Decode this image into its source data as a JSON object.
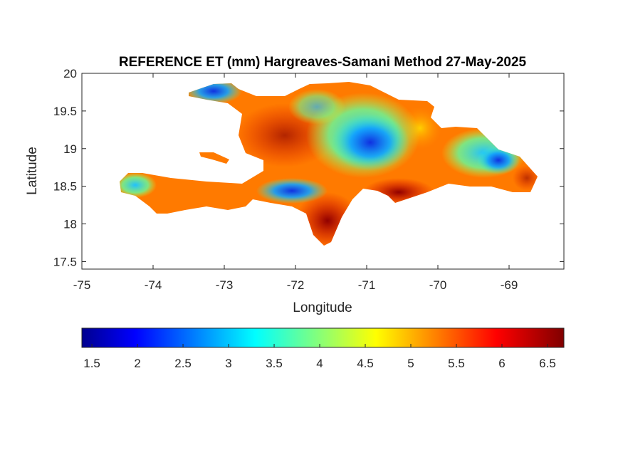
{
  "chart_data": {
    "type": "heatmap",
    "title": "REFERENCE ET (mm) Hargreaves-Samani Method  27-May-2025",
    "xlabel": "Longitude",
    "ylabel": "Latitude",
    "xlim": [
      -75,
      -68.23
    ],
    "ylim": [
      17.4,
      20
    ],
    "xticks": [
      "-75",
      "-74",
      "-73",
      "-72",
      "-71",
      "-70",
      "-69"
    ],
    "xtick_values": [
      -75,
      -74,
      -73,
      -72,
      -71,
      -70,
      -69
    ],
    "yticks": [
      "17.5",
      "18",
      "18.5",
      "19",
      "19.5",
      "20"
    ],
    "ytick_values": [
      17.5,
      18,
      18.5,
      19,
      19.5,
      20
    ],
    "colormap": "jet",
    "clim": [
      1.39,
      6.68
    ],
    "colorbar_ticks": [
      "1.5",
      "2",
      "2.5",
      "3",
      "3.5",
      "4",
      "4.5",
      "5",
      "5.5",
      "6",
      "6.5"
    ],
    "colorbar_tick_values": [
      1.5,
      2,
      2.5,
      3,
      3.5,
      4,
      4.5,
      5,
      5.5,
      6,
      6.5
    ],
    "colorbar_location": "southoutside",
    "grid": false
  }
}
